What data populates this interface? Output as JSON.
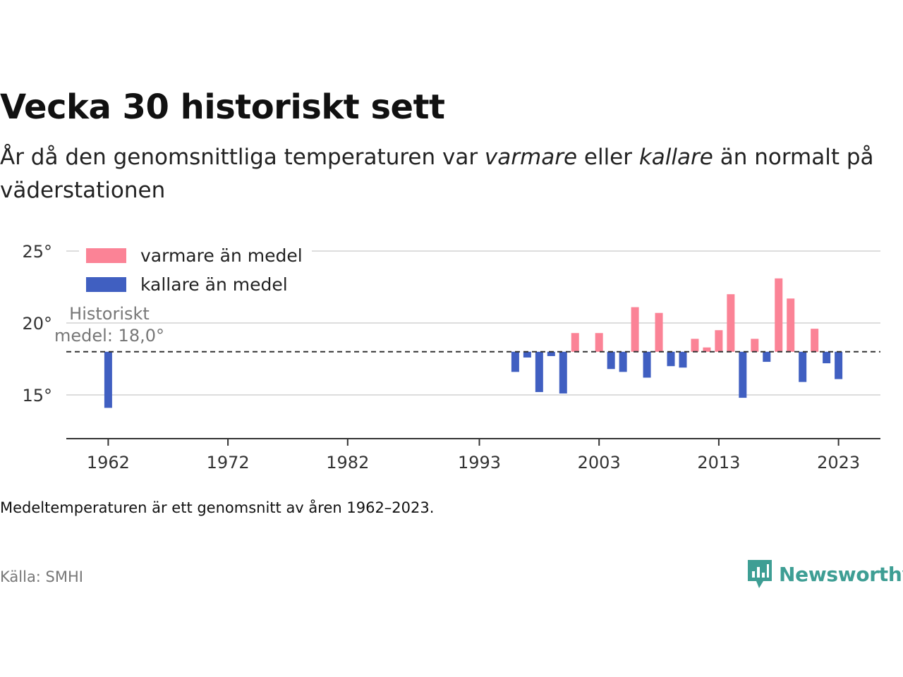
{
  "header": {
    "title": "Vecka 30 historiskt sett",
    "subtitle_parts": [
      "År då den genomsnittliga temperaturen var ",
      "varmare",
      " eller ",
      "kallare",
      " än normalt på väderstationen"
    ]
  },
  "footer": {
    "note": "Medeltemperaturen är ett genomsnitt av åren 1962–2023.",
    "source": "Källa: SMHI",
    "brand": "Newsworthy"
  },
  "colors": {
    "warmer": "#fb8396",
    "colder": "#405fc1",
    "brand": "#3e9e94"
  },
  "chart_data": {
    "type": "bar",
    "ylim": [
      12,
      25
    ],
    "xlim": [
      1958.5,
      2026.5
    ],
    "baseline": 18.0,
    "baseline_label_line1": "Historiskt",
    "baseline_label_line2": "medel: 18,0°",
    "y_ticks": [
      {
        "value": 15,
        "label": "15°"
      },
      {
        "value": 20,
        "label": "20°"
      },
      {
        "value": 25,
        "label": "25°"
      }
    ],
    "x_ticks": [
      {
        "value": 1962,
        "label": "1962"
      },
      {
        "value": 1972,
        "label": "1972"
      },
      {
        "value": 1982,
        "label": "1982"
      },
      {
        "value": 1993,
        "label": "1993"
      },
      {
        "value": 2003,
        "label": "2003"
      },
      {
        "value": 2013,
        "label": "2013"
      },
      {
        "value": 2023,
        "label": "2023"
      }
    ],
    "legend": [
      {
        "key": "warmer",
        "label": "varmare än medel"
      },
      {
        "key": "colder",
        "label": "kallare än medel"
      }
    ],
    "legend_position": "top-left",
    "grid": true,
    "points": [
      {
        "year": 1962,
        "value": 14.1
      },
      {
        "year": 1996,
        "value": 16.6
      },
      {
        "year": 1997,
        "value": 17.6
      },
      {
        "year": 1998,
        "value": 15.2
      },
      {
        "year": 1999,
        "value": 17.7
      },
      {
        "year": 2000,
        "value": 15.1
      },
      {
        "year": 2001,
        "value": 19.3
      },
      {
        "year": 2003,
        "value": 19.3
      },
      {
        "year": 2004,
        "value": 16.8
      },
      {
        "year": 2005,
        "value": 16.6
      },
      {
        "year": 2006,
        "value": 21.1
      },
      {
        "year": 2007,
        "value": 16.2
      },
      {
        "year": 2008,
        "value": 20.7
      },
      {
        "year": 2009,
        "value": 17.0
      },
      {
        "year": 2010,
        "value": 16.9
      },
      {
        "year": 2011,
        "value": 18.9
      },
      {
        "year": 2012,
        "value": 18.3
      },
      {
        "year": 2013,
        "value": 19.5
      },
      {
        "year": 2014,
        "value": 22.0
      },
      {
        "year": 2015,
        "value": 14.8
      },
      {
        "year": 2016,
        "value": 18.9
      },
      {
        "year": 2017,
        "value": 17.3
      },
      {
        "year": 2018,
        "value": 23.1
      },
      {
        "year": 2019,
        "value": 21.7
      },
      {
        "year": 2020,
        "value": 15.9
      },
      {
        "year": 2021,
        "value": 19.6
      },
      {
        "year": 2022,
        "value": 17.2
      },
      {
        "year": 2023,
        "value": 16.1
      }
    ]
  }
}
